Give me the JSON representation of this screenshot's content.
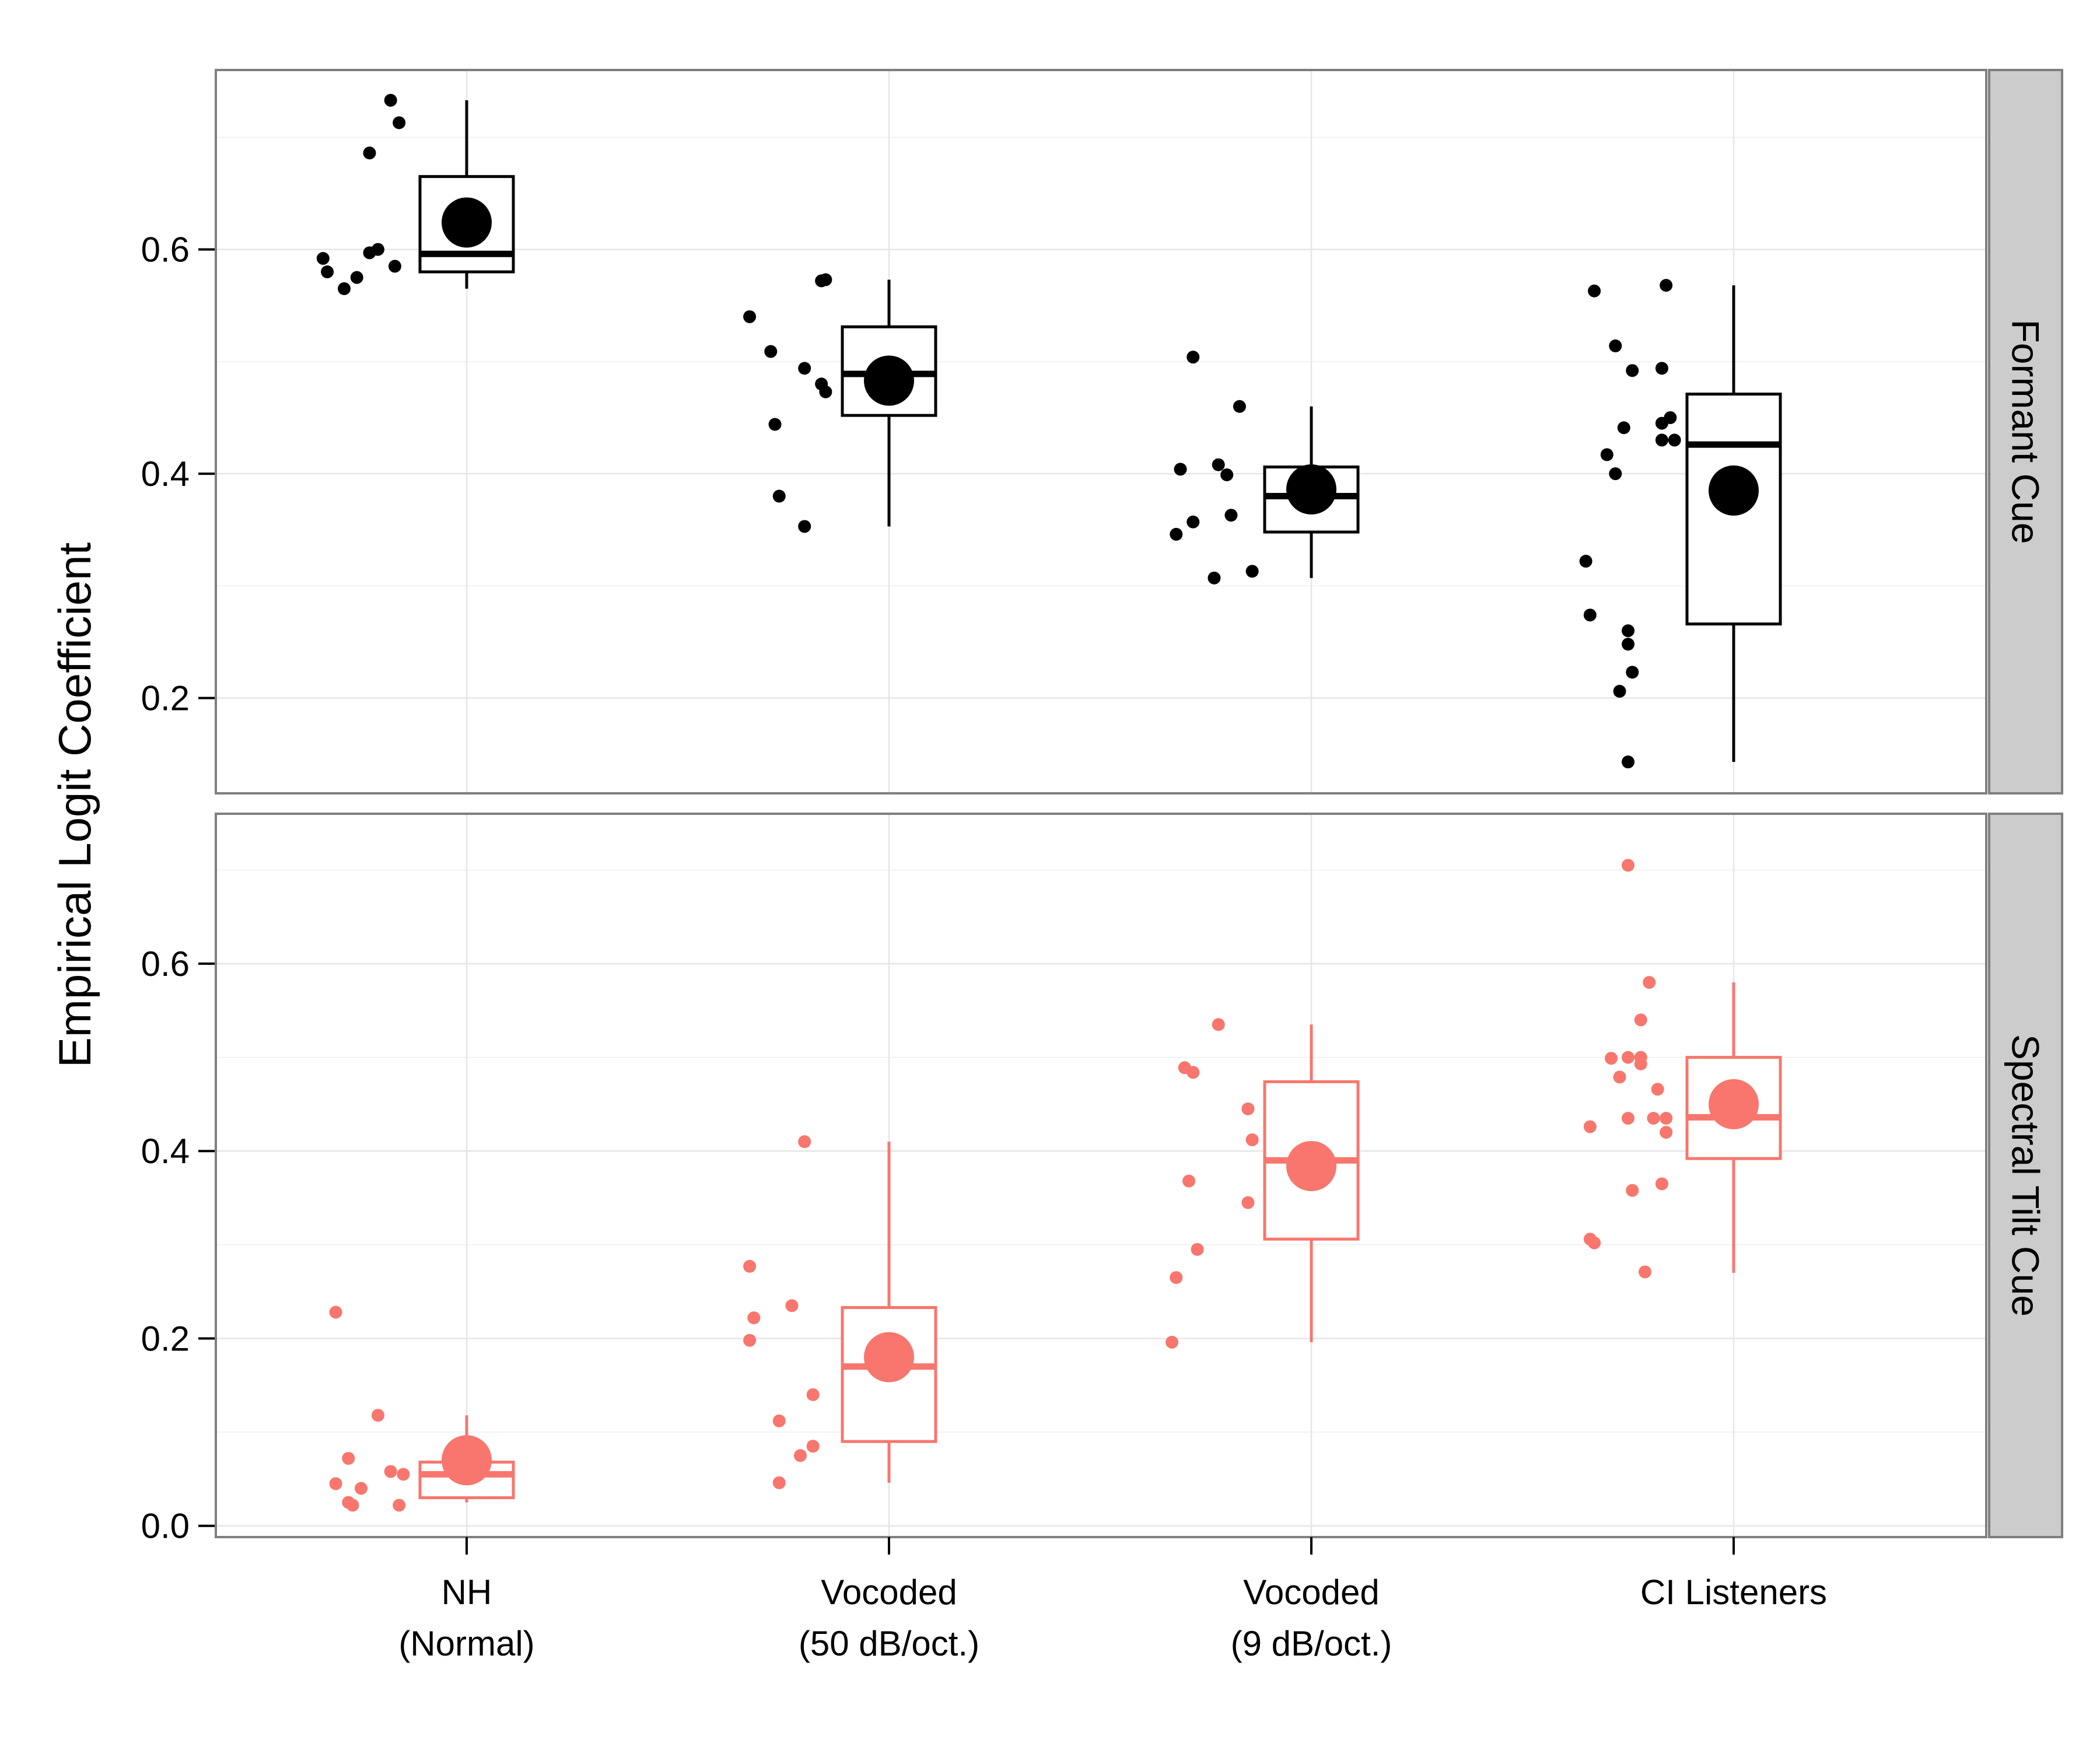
{
  "chart_data": {
    "type": "box",
    "ylabel": "Empirical Logit Coefficient",
    "xlabel": "",
    "categories": [
      [
        "NH",
        "(Normal)"
      ],
      [
        "Vocoded",
        "(50 dB/oct.)"
      ],
      [
        "Vocoded",
        "(9 dB/oct.)"
      ],
      [
        "CI Listeners"
      ]
    ],
    "grid": true,
    "panels": [
      {
        "strip_label": "Formant Cue",
        "color": "#000000",
        "ylim": [
          0.115,
          0.76
        ],
        "yticks": [
          0.2,
          0.4,
          0.6
        ],
        "ytick_labels": [
          "0.2",
          "0.4",
          "0.6"
        ],
        "boxes": [
          {
            "category": 0,
            "min": 0.565,
            "q1": 0.58,
            "median": 0.596,
            "q3": 0.665,
            "max": 0.733,
            "mean": 0.624
          },
          {
            "category": 1,
            "min": 0.353,
            "q1": 0.452,
            "median": 0.489,
            "q3": 0.531,
            "max": 0.573,
            "mean": 0.483
          },
          {
            "category": 2,
            "min": 0.307,
            "q1": 0.348,
            "median": 0.38,
            "q3": 0.406,
            "max": 0.46,
            "mean": 0.386
          },
          {
            "category": 3,
            "min": 0.143,
            "q1": 0.266,
            "median": 0.426,
            "q3": 0.471,
            "max": 0.568,
            "mean": 0.385
          }
        ],
        "points": [
          {
            "category": 0,
            "dx": -0.34,
            "y": 0.592
          },
          {
            "category": 0,
            "dx": -0.33,
            "y": 0.58
          },
          {
            "category": 0,
            "dx": -0.29,
            "y": 0.565
          },
          {
            "category": 0,
            "dx": -0.26,
            "y": 0.575
          },
          {
            "category": 0,
            "dx": -0.23,
            "y": 0.597
          },
          {
            "category": 0,
            "dx": -0.23,
            "y": 0.686
          },
          {
            "category": 0,
            "dx": -0.21,
            "y": 0.6
          },
          {
            "category": 0,
            "dx": -0.18,
            "y": 0.733
          },
          {
            "category": 0,
            "dx": -0.17,
            "y": 0.585
          },
          {
            "category": 0,
            "dx": -0.16,
            "y": 0.713
          },
          {
            "category": 1,
            "dx": -0.33,
            "y": 0.54
          },
          {
            "category": 1,
            "dx": -0.28,
            "y": 0.509
          },
          {
            "category": 1,
            "dx": -0.27,
            "y": 0.444
          },
          {
            "category": 1,
            "dx": -0.26,
            "y": 0.38
          },
          {
            "category": 1,
            "dx": -0.2,
            "y": 0.494
          },
          {
            "category": 1,
            "dx": -0.2,
            "y": 0.353
          },
          {
            "category": 1,
            "dx": -0.16,
            "y": 0.572
          },
          {
            "category": 1,
            "dx": -0.15,
            "y": 0.573
          },
          {
            "category": 1,
            "dx": -0.16,
            "y": 0.48
          },
          {
            "category": 1,
            "dx": -0.15,
            "y": 0.473
          },
          {
            "category": 2,
            "dx": -0.32,
            "y": 0.346
          },
          {
            "category": 2,
            "dx": -0.31,
            "y": 0.404
          },
          {
            "category": 2,
            "dx": -0.28,
            "y": 0.357
          },
          {
            "category": 2,
            "dx": -0.28,
            "y": 0.504
          },
          {
            "category": 2,
            "dx": -0.23,
            "y": 0.307
          },
          {
            "category": 2,
            "dx": -0.22,
            "y": 0.408
          },
          {
            "category": 2,
            "dx": -0.2,
            "y": 0.399
          },
          {
            "category": 2,
            "dx": -0.19,
            "y": 0.363
          },
          {
            "category": 2,
            "dx": -0.17,
            "y": 0.46
          },
          {
            "category": 2,
            "dx": -0.14,
            "y": 0.313
          },
          {
            "category": 3,
            "dx": -0.35,
            "y": 0.322
          },
          {
            "category": 3,
            "dx": -0.34,
            "y": 0.274
          },
          {
            "category": 3,
            "dx": -0.33,
            "y": 0.563
          },
          {
            "category": 3,
            "dx": -0.3,
            "y": 0.417
          },
          {
            "category": 3,
            "dx": -0.28,
            "y": 0.514
          },
          {
            "category": 3,
            "dx": -0.28,
            "y": 0.4
          },
          {
            "category": 3,
            "dx": -0.27,
            "y": 0.206
          },
          {
            "category": 3,
            "dx": -0.26,
            "y": 0.441
          },
          {
            "category": 3,
            "dx": -0.25,
            "y": 0.26
          },
          {
            "category": 3,
            "dx": -0.25,
            "y": 0.248
          },
          {
            "category": 3,
            "dx": -0.25,
            "y": 0.143
          },
          {
            "category": 3,
            "dx": -0.24,
            "y": 0.492
          },
          {
            "category": 3,
            "dx": -0.24,
            "y": 0.223
          },
          {
            "category": 3,
            "dx": -0.17,
            "y": 0.494
          },
          {
            "category": 3,
            "dx": -0.17,
            "y": 0.445
          },
          {
            "category": 3,
            "dx": -0.17,
            "y": 0.43
          },
          {
            "category": 3,
            "dx": -0.16,
            "y": 0.568
          },
          {
            "category": 3,
            "dx": -0.15,
            "y": 0.45
          },
          {
            "category": 3,
            "dx": -0.14,
            "y": 0.43
          }
        ]
      },
      {
        "strip_label": "Spectral Tilt Cue",
        "color": "#F8766D",
        "ylim": [
          -0.012,
          0.76
        ],
        "yticks": [
          0.0,
          0.2,
          0.4,
          0.6
        ],
        "ytick_labels": [
          "0.0",
          "0.2",
          "0.4",
          "0.6"
        ],
        "boxes": [
          {
            "category": 0,
            "min": 0.025,
            "q1": 0.03,
            "median": 0.055,
            "q3": 0.068,
            "max": 0.118,
            "mean": 0.07
          },
          {
            "category": 1,
            "min": 0.046,
            "q1": 0.09,
            "median": 0.17,
            "q3": 0.233,
            "max": 0.41,
            "mean": 0.18
          },
          {
            "category": 2,
            "min": 0.196,
            "q1": 0.306,
            "median": 0.39,
            "q3": 0.474,
            "max": 0.535,
            "mean": 0.384
          },
          {
            "category": 3,
            "min": 0.27,
            "q1": 0.392,
            "median": 0.436,
            "q3": 0.5,
            "max": 0.58,
            "mean": 0.45
          }
        ],
        "points": [
          {
            "category": 0,
            "dx": -0.31,
            "y": 0.228
          },
          {
            "category": 0,
            "dx": -0.31,
            "y": 0.045
          },
          {
            "category": 0,
            "dx": -0.28,
            "y": 0.072
          },
          {
            "category": 0,
            "dx": -0.28,
            "y": 0.025
          },
          {
            "category": 0,
            "dx": -0.27,
            "y": 0.022
          },
          {
            "category": 0,
            "dx": -0.25,
            "y": 0.04
          },
          {
            "category": 0,
            "dx": -0.21,
            "y": 0.118
          },
          {
            "category": 0,
            "dx": -0.18,
            "y": 0.058
          },
          {
            "category": 0,
            "dx": -0.15,
            "y": 0.055
          },
          {
            "category": 0,
            "dx": -0.16,
            "y": 0.022
          },
          {
            "category": 1,
            "dx": -0.33,
            "y": 0.277
          },
          {
            "category": 1,
            "dx": -0.33,
            "y": 0.198
          },
          {
            "category": 1,
            "dx": -0.32,
            "y": 0.222
          },
          {
            "category": 1,
            "dx": -0.26,
            "y": 0.112
          },
          {
            "category": 1,
            "dx": -0.26,
            "y": 0.046
          },
          {
            "category": 1,
            "dx": -0.23,
            "y": 0.235
          },
          {
            "category": 1,
            "dx": -0.21,
            "y": 0.075
          },
          {
            "category": 1,
            "dx": -0.2,
            "y": 0.41
          },
          {
            "category": 1,
            "dx": -0.18,
            "y": 0.14
          },
          {
            "category": 1,
            "dx": -0.18,
            "y": 0.085
          },
          {
            "category": 2,
            "dx": -0.33,
            "y": 0.196
          },
          {
            "category": 2,
            "dx": -0.32,
            "y": 0.265
          },
          {
            "category": 2,
            "dx": -0.3,
            "y": 0.489
          },
          {
            "category": 2,
            "dx": -0.29,
            "y": 0.368
          },
          {
            "category": 2,
            "dx": -0.28,
            "y": 0.484
          },
          {
            "category": 2,
            "dx": -0.27,
            "y": 0.295
          },
          {
            "category": 2,
            "dx": -0.22,
            "y": 0.535
          },
          {
            "category": 2,
            "dx": -0.15,
            "y": 0.345
          },
          {
            "category": 2,
            "dx": -0.15,
            "y": 0.445
          },
          {
            "category": 2,
            "dx": -0.14,
            "y": 0.412
          },
          {
            "category": 3,
            "dx": -0.34,
            "y": 0.426
          },
          {
            "category": 3,
            "dx": -0.34,
            "y": 0.306
          },
          {
            "category": 3,
            "dx": -0.33,
            "y": 0.302
          },
          {
            "category": 3,
            "dx": -0.29,
            "y": 0.499
          },
          {
            "category": 3,
            "dx": -0.27,
            "y": 0.479
          },
          {
            "category": 3,
            "dx": -0.25,
            "y": 0.705
          },
          {
            "category": 3,
            "dx": -0.25,
            "y": 0.5
          },
          {
            "category": 3,
            "dx": -0.25,
            "y": 0.435
          },
          {
            "category": 3,
            "dx": -0.24,
            "y": 0.358
          },
          {
            "category": 3,
            "dx": -0.22,
            "y": 0.54
          },
          {
            "category": 3,
            "dx": -0.22,
            "y": 0.5
          },
          {
            "category": 3,
            "dx": -0.22,
            "y": 0.493
          },
          {
            "category": 3,
            "dx": -0.21,
            "y": 0.271
          },
          {
            "category": 3,
            "dx": -0.2,
            "y": 0.58
          },
          {
            "category": 3,
            "dx": -0.19,
            "y": 0.435
          },
          {
            "category": 3,
            "dx": -0.18,
            "y": 0.466
          },
          {
            "category": 3,
            "dx": -0.17,
            "y": 0.365
          },
          {
            "category": 3,
            "dx": -0.16,
            "y": 0.42
          },
          {
            "category": 3,
            "dx": -0.16,
            "y": 0.435
          }
        ]
      }
    ]
  }
}
